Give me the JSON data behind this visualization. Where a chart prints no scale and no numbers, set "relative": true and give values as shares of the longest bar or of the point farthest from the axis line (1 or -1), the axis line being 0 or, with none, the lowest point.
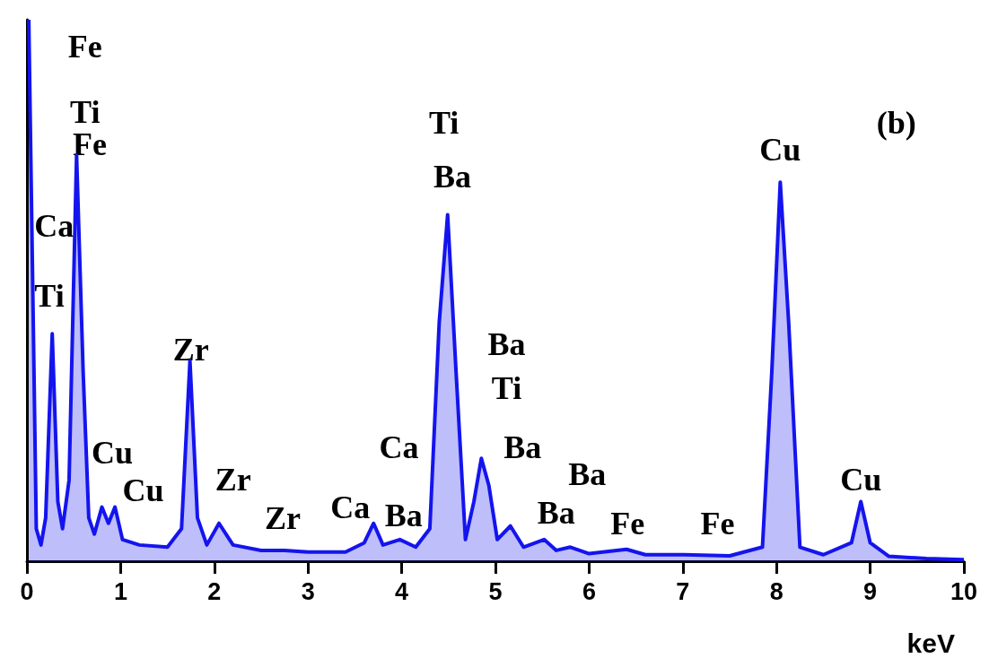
{
  "chart_data": {
    "type": "area",
    "relative": true,
    "xlabel": "keV",
    "color": "#1414ee",
    "xlim": [
      0,
      10
    ],
    "xticks": [
      0,
      1,
      2,
      3,
      4,
      5,
      6,
      7,
      8,
      9,
      10
    ],
    "grid": false,
    "x": [
      0.02,
      0.1,
      0.15,
      0.2,
      0.27,
      0.33,
      0.38,
      0.45,
      0.53,
      0.6,
      0.66,
      0.72,
      0.8,
      0.87,
      0.94,
      1.02,
      1.2,
      1.5,
      1.65,
      1.74,
      1.82,
      1.92,
      2.05,
      2.2,
      2.5,
      2.75,
      3.0,
      3.4,
      3.6,
      3.7,
      3.8,
      3.98,
      4.15,
      4.3,
      4.4,
      4.49,
      4.58,
      4.68,
      4.77,
      4.85,
      4.93,
      5.02,
      5.16,
      5.3,
      5.52,
      5.65,
      5.8,
      6.0,
      6.4,
      6.6,
      7.0,
      7.5,
      7.85,
      7.95,
      8.04,
      8.13,
      8.25,
      8.5,
      8.8,
      8.9,
      9.0,
      9.2,
      9.6,
      10
    ],
    "values": [
      1,
      0.06,
      0.03,
      0.08,
      0.42,
      0.11,
      0.06,
      0.15,
      0.75,
      0.35,
      0.08,
      0.05,
      0.1,
      0.07,
      0.1,
      0.04,
      0.03,
      0.026,
      0.06,
      0.37,
      0.08,
      0.03,
      0.07,
      0.03,
      0.02,
      0.02,
      0.017,
      0.017,
      0.034,
      0.07,
      0.03,
      0.04,
      0.026,
      0.06,
      0.44,
      0.64,
      0.35,
      0.04,
      0.11,
      0.19,
      0.14,
      0.04,
      0.065,
      0.026,
      0.04,
      0.02,
      0.026,
      0.014,
      0.022,
      0.012,
      0.012,
      0.01,
      0.026,
      0.35,
      0.7,
      0.44,
      0.026,
      0.012,
      0.034,
      0.11,
      0.034,
      0.009,
      0.005,
      0.003
    ],
    "annotations": [
      "Fe",
      "Ti",
      "Fe",
      "Ca",
      "Ti",
      "Zr",
      "Cu",
      "Cu",
      "Zr",
      "Zr",
      "Ca",
      "Ba",
      "Ca",
      "Ti",
      "Ba",
      "Ba",
      "Ti",
      "Ba",
      "Ba",
      "Ba",
      "Fe",
      "Fe",
      "Cu",
      "Cu",
      "(b)"
    ]
  }
}
